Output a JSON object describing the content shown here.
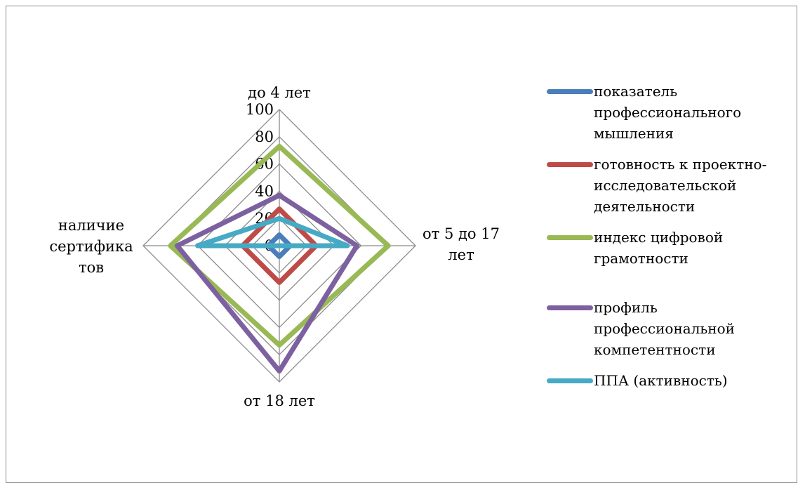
{
  "chart_data": {
    "type": "radar",
    "categories": [
      "до 4 лет",
      "от 5 до 17 лет",
      "от 18 лет",
      "наличие сертификатов"
    ],
    "category_label_lines": [
      [
        "до 4 лет"
      ],
      [
        "от 5 до 17",
        "лет"
      ],
      [
        "от 18 лет"
      ],
      [
        "наличие",
        "сертифика",
        "тов"
      ]
    ],
    "r_ticks": [
      "0",
      "20",
      "40",
      "60",
      "80",
      "100"
    ],
    "rlim": [
      0,
      100
    ],
    "grid": true,
    "legend_position": "right",
    "series": [
      {
        "name": "показатель профессионального мышления",
        "name_lines": [
          "показатель",
          "профессионального",
          "мышления"
        ],
        "color": "#4a7ebb",
        "values": [
          8,
          8,
          8,
          8
        ]
      },
      {
        "name": "готовность к проектно-исследовательской деятельности",
        "name_lines": [
          "готовность к проектно-",
          "исследовательской",
          "деятельности"
        ],
        "color": "#be4b48",
        "values": [
          27,
          27,
          27,
          27
        ]
      },
      {
        "name": "индекс цифровой грамотности",
        "name_lines": [
          "индекс цифровой",
          "грамотности"
        ],
        "color": "#98b954",
        "values": [
          73,
          80,
          73,
          80
        ]
      },
      {
        "name": "профиль профессиональной компетентности",
        "name_lines": [
          "профиль",
          "профессиональной",
          "компетентности"
        ],
        "color": "#7d60a0",
        "values": [
          37,
          57,
          92,
          75
        ]
      },
      {
        "name": "ППА (активность)",
        "name_lines": [
          "ППА (активность)"
        ],
        "color": "#46aac5",
        "values": [
          20,
          50,
          0,
          60
        ]
      }
    ]
  }
}
